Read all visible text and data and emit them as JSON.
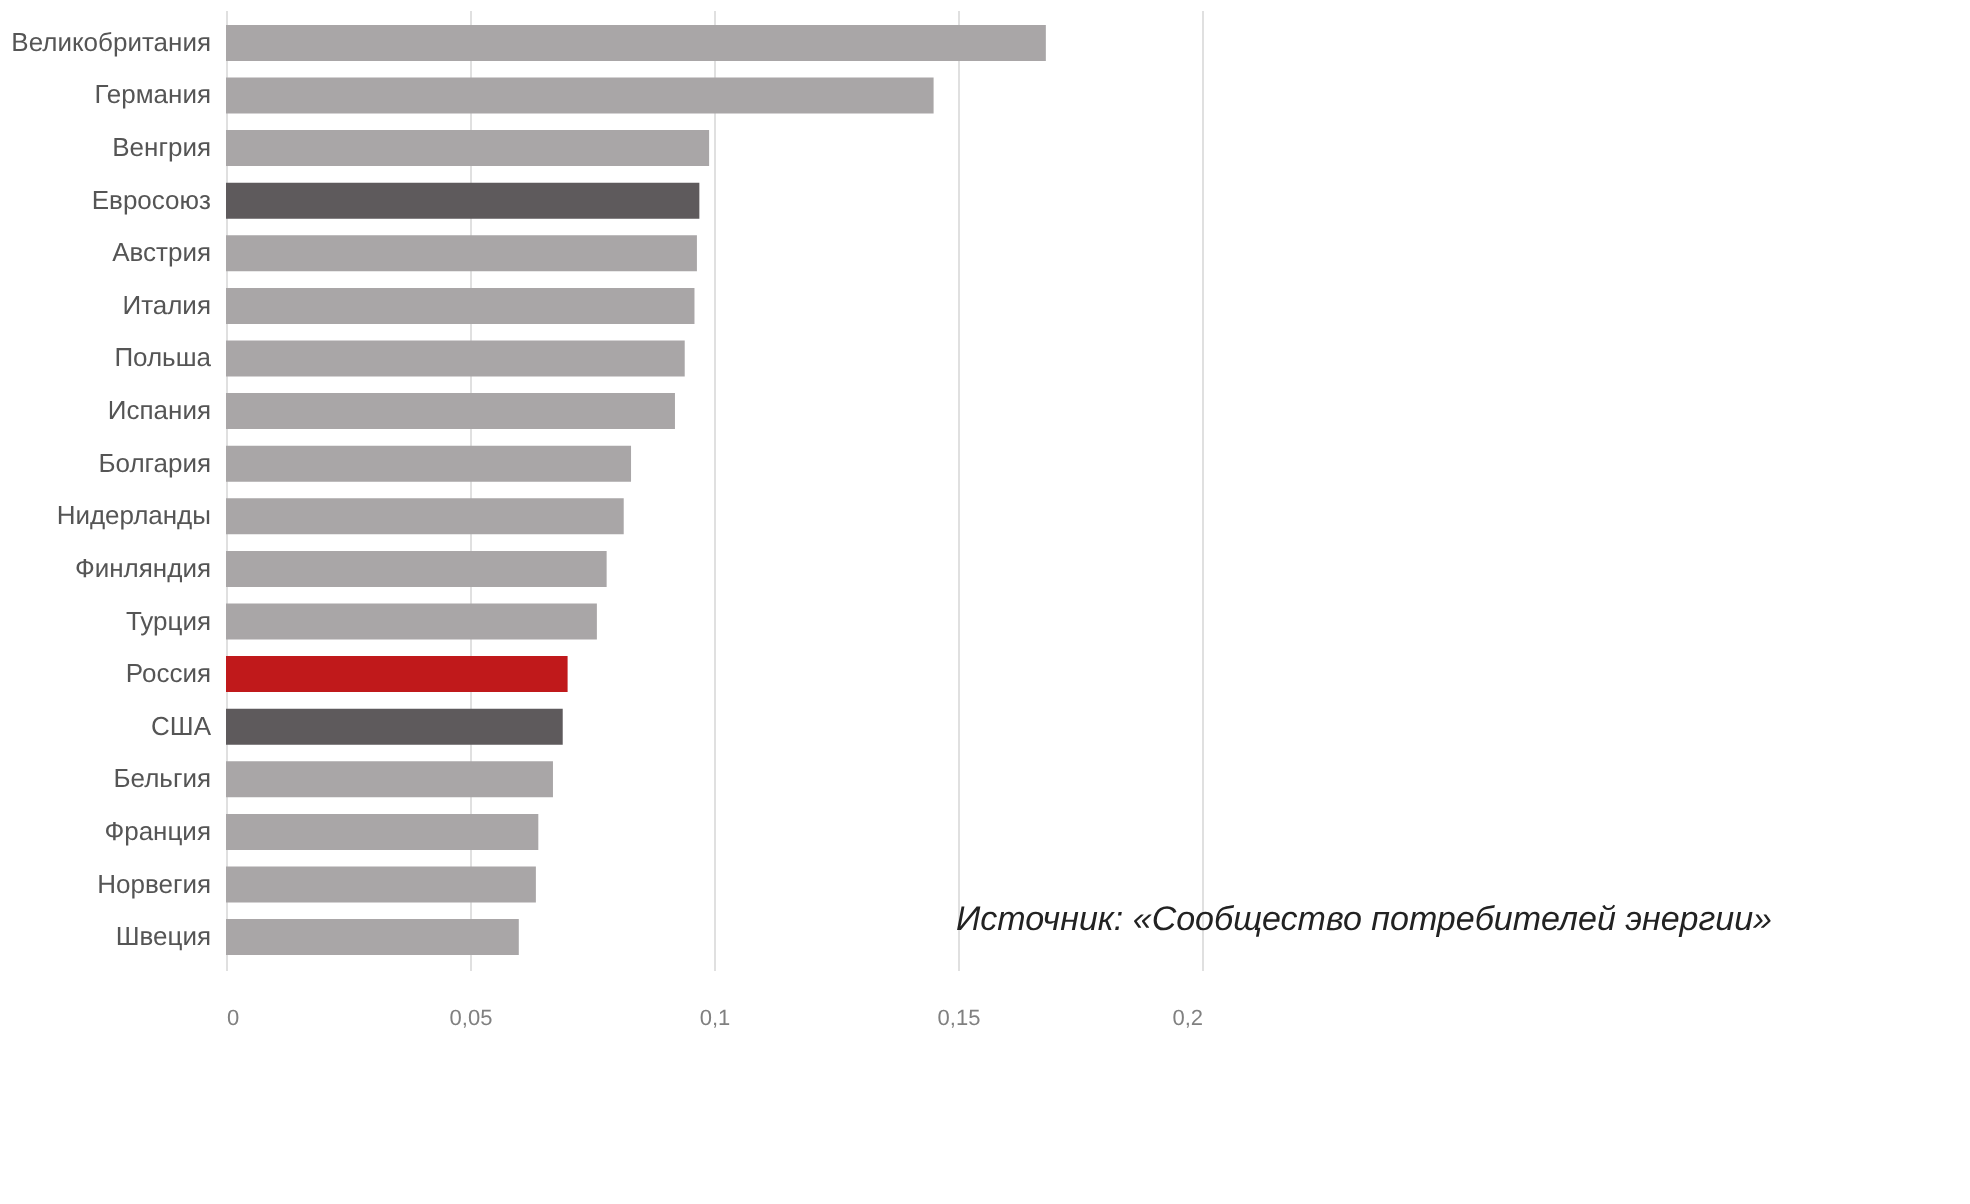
{
  "chart_data": {
    "type": "bar",
    "orientation": "horizontal",
    "categories": [
      "Великобритания",
      "Германия",
      "Венгрия",
      "Евросоюз",
      "Австрия",
      "Италия",
      "Польша",
      "Испания",
      "Болгария",
      "Нидерланды",
      "Финляндия",
      "Турция",
      "Россия",
      "США",
      "Бельгия",
      "Франция",
      "Норвегия",
      "Швеция"
    ],
    "values": [
      0.168,
      0.145,
      0.099,
      0.097,
      0.0965,
      0.096,
      0.094,
      0.092,
      0.083,
      0.0815,
      0.078,
      0.076,
      0.07,
      0.069,
      0.067,
      0.064,
      0.0635,
      0.06
    ],
    "colors": [
      "#a9a6a7",
      "#a9a6a7",
      "#a9a6a7",
      "#5e5a5c",
      "#a9a6a7",
      "#a9a6a7",
      "#a9a6a7",
      "#a9a6a7",
      "#a9a6a7",
      "#a9a6a7",
      "#a9a6a7",
      "#a9a6a7",
      "#c0191b",
      "#5e5a5c",
      "#a9a6a7",
      "#a9a6a7",
      "#a9a6a7",
      "#a9a6a7"
    ],
    "xlim": [
      0,
      0.2
    ],
    "xticks": [
      0,
      {
        "value": 0.05,
        "label": "0,05"
      },
      {
        "value": 0.1,
        "label": "0,1"
      },
      {
        "value": 0.15,
        "label": "0,15"
      },
      {
        "value": 0.2,
        "label": "0,2"
      }
    ],
    "grid": "x",
    "annotations": [
      "Источник: «Сообщество потребителей энергии»"
    ]
  }
}
